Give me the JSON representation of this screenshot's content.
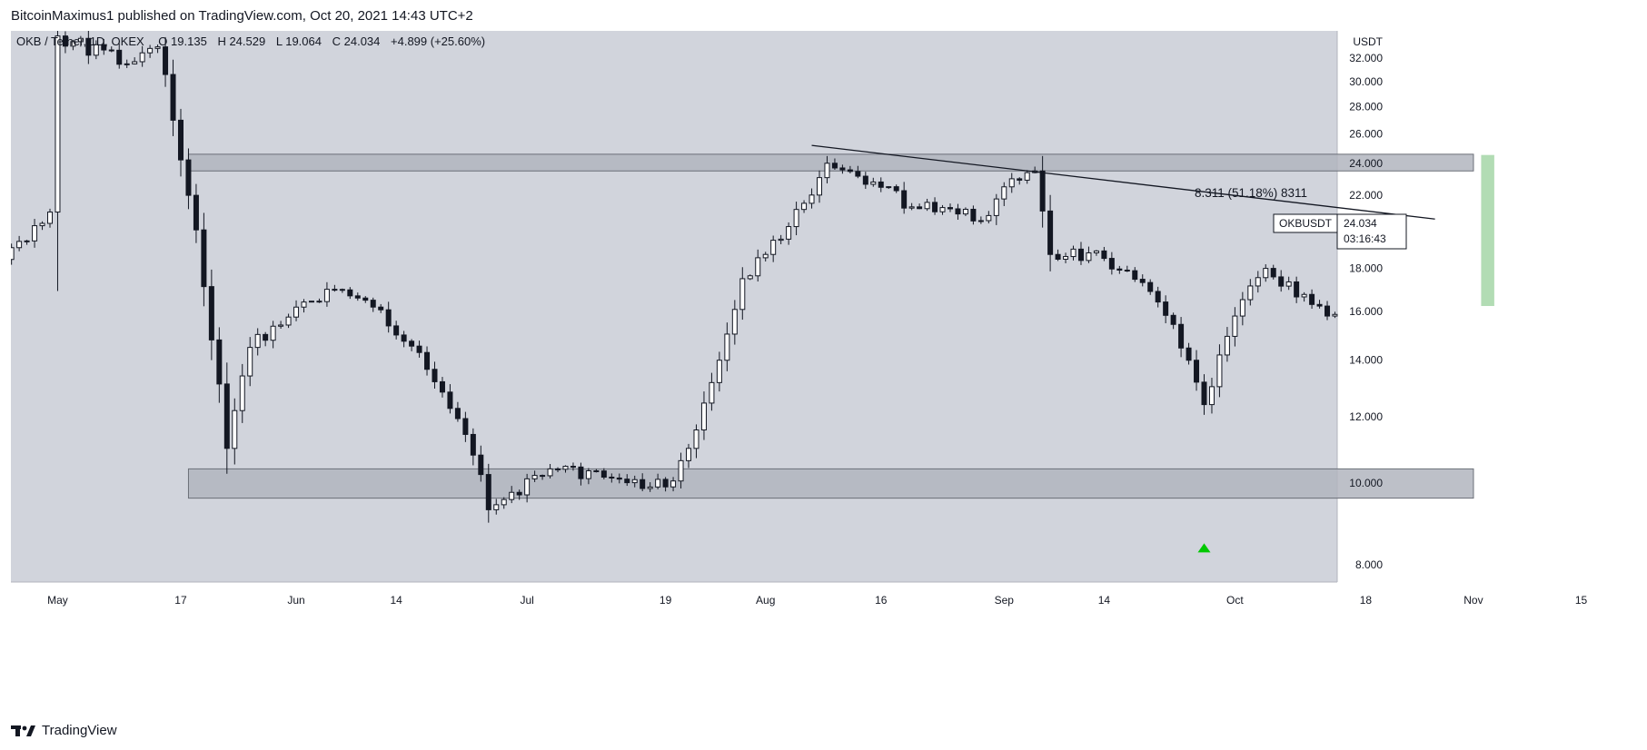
{
  "header": {
    "published_text": "BitcoinMaximus1 published on TradingView.com, Oct 20, 2021 14:43 UTC+2"
  },
  "legend": {
    "symbol_text": "OKB / Tether, 1D, OKEX",
    "o_label": "O",
    "o_value": "19.135",
    "h_label": "H",
    "h_value": "24.529",
    "l_label": "L",
    "l_value": "19.064",
    "c_label": "C",
    "c_value": "24.034",
    "change": "+4.899 (+25.60%)"
  },
  "price_axis": {
    "currency": "USDT",
    "tag_symbol": "OKBUSDT",
    "tag_price": "24.034",
    "tag_countdown": "03:16:43"
  },
  "measure_label": "8.311 (51.18%) 8311",
  "footer": {
    "brand": "TradingView"
  },
  "colors": {
    "background": "#d1d4dc",
    "up_candle_body": "#ffffff",
    "down_candle_body": "#131722",
    "wick": "#131722",
    "zone_fill": "#b2b5be",
    "measure_fill": "#a5d6a7",
    "arrow": "#00c800"
  },
  "chart_data": {
    "type": "candlestick",
    "title": "OKB / Tether, 1D, OKEX",
    "ylabel": "USDT",
    "y_scale": "log",
    "ylim": [
      7.1,
      35.0
    ],
    "y_ticks": [
      "32.000",
      "30.000",
      "28.000",
      "26.000",
      "24.000",
      "22.000",
      "20.000",
      "18.000",
      "16.000",
      "14.000",
      "12.000",
      "10.000",
      "8.000"
    ],
    "x_tick_labels": [
      {
        "date": "2021-05-01",
        "label": "May"
      },
      {
        "date": "2021-05-17",
        "label": "17"
      },
      {
        "date": "2021-06-01",
        "label": "Jun"
      },
      {
        "date": "2021-06-14",
        "label": "14"
      },
      {
        "date": "2021-07-01",
        "label": "Jul"
      },
      {
        "date": "2021-07-19",
        "label": "19"
      },
      {
        "date": "2021-08-01",
        "label": "Aug"
      },
      {
        "date": "2021-08-16",
        "label": "16"
      },
      {
        "date": "2021-09-01",
        "label": "Sep"
      },
      {
        "date": "2021-09-14",
        "label": "14"
      },
      {
        "date": "2021-10-01",
        "label": "Oct"
      },
      {
        "date": "2021-10-18",
        "label": "18"
      },
      {
        "date": "2021-11-01",
        "label": "Nov"
      },
      {
        "date": "2021-11-15",
        "label": "15"
      }
    ],
    "key_candles": [
      {
        "date": "2021-04-21",
        "close": 17.2
      },
      {
        "date": "2021-04-30",
        "close": 21.0
      },
      {
        "date": "2021-05-01",
        "close": 34.0
      },
      {
        "date": "2021-05-10",
        "close": 31.5
      },
      {
        "date": "2021-05-14",
        "close": 33.0
      },
      {
        "date": "2021-05-16",
        "close": 27.0
      },
      {
        "date": "2021-05-19",
        "close": 20.0
      },
      {
        "date": "2021-05-21",
        "close": 14.8
      },
      {
        "date": "2021-05-23",
        "close": 11.0
      },
      {
        "date": "2021-05-26",
        "close": 14.5
      },
      {
        "date": "2021-06-05",
        "close": 17.0
      },
      {
        "date": "2021-06-10",
        "close": 16.5
      },
      {
        "date": "2021-06-17",
        "close": 14.3
      },
      {
        "date": "2021-06-24",
        "close": 10.8
      },
      {
        "date": "2021-06-26",
        "close": 9.3
      },
      {
        "date": "2021-07-04",
        "close": 10.4
      },
      {
        "date": "2021-07-19",
        "close": 9.9
      },
      {
        "date": "2021-07-22",
        "close": 11.0
      },
      {
        "date": "2021-07-26",
        "close": 14.0
      },
      {
        "date": "2021-07-29",
        "close": 17.5
      },
      {
        "date": "2021-08-03",
        "close": 19.5
      },
      {
        "date": "2021-08-07",
        "close": 22.0
      },
      {
        "date": "2021-08-09",
        "close": 24.0
      },
      {
        "date": "2021-08-15",
        "close": 22.8
      },
      {
        "date": "2021-08-20",
        "close": 21.3
      },
      {
        "date": "2021-08-30",
        "close": 20.8
      },
      {
        "date": "2021-09-01",
        "close": 22.5
      },
      {
        "date": "2021-09-05",
        "close": 23.5
      },
      {
        "date": "2021-09-07",
        "close": 18.7
      },
      {
        "date": "2021-09-14",
        "close": 18.5
      },
      {
        "date": "2021-09-20",
        "close": 16.9
      },
      {
        "date": "2021-09-25",
        "close": 14.0
      },
      {
        "date": "2021-09-27",
        "close": 12.4
      },
      {
        "date": "2021-10-01",
        "close": 15.8
      },
      {
        "date": "2021-10-05",
        "close": 18.0
      },
      {
        "date": "2021-10-13",
        "close": 15.8
      },
      {
        "date": "2021-10-18",
        "close": 16.5
      },
      {
        "date": "2021-10-19",
        "close": 19.135
      },
      {
        "date": "2021-10-20",
        "open": 19.135,
        "high": 24.529,
        "low": 19.064,
        "close": 24.034
      }
    ],
    "annotations": {
      "resistance_zone": {
        "from": "2021-05-18",
        "to": "2021-11-01",
        "low": 23.5,
        "high": 24.6
      },
      "support_zone": {
        "from": "2021-05-18",
        "to": "2021-11-01",
        "low": 9.6,
        "high": 10.4
      },
      "descending_trendline": [
        {
          "date": "2021-08-07",
          "price": 25.2
        },
        {
          "date": "2021-10-27",
          "price": 20.6
        }
      ],
      "price_range_measure": {
        "from": "2021-11-02",
        "to": "2021-11-03",
        "low": 16.24,
        "high": 24.55,
        "change": 8.311,
        "percent": 51.18
      },
      "bounce_marker": {
        "date": "2021-09-27",
        "price": 8.4
      }
    }
  }
}
